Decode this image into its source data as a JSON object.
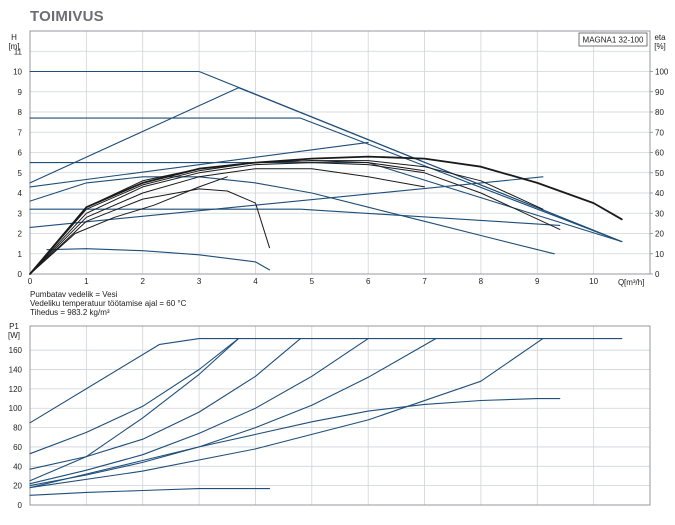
{
  "header": {
    "title": "TOIMIVUS"
  },
  "chart_data": [
    {
      "type": "line",
      "title": "",
      "legend_box": "MAGNA1 32-100",
      "ylabel": "H",
      "ylabel_unit": "[m]",
      "y2label": "eta",
      "y2label_unit": "[%]",
      "xlabel": "Q",
      "xlabel_unit": "[m³/h]",
      "xlim": [
        0,
        11
      ],
      "ylim": [
        0,
        12
      ],
      "y2lim": [
        0,
        120
      ],
      "grid": true,
      "x_ticks": [
        "0",
        "1",
        "2",
        "3",
        "4",
        "5",
        "6",
        "7",
        "8",
        "9",
        "10"
      ],
      "y_ticks": [
        "0",
        "1",
        "2",
        "3",
        "4",
        "5",
        "6",
        "7",
        "8",
        "9",
        "10",
        "11"
      ],
      "y2_ticks": [
        "0",
        "10",
        "20",
        "30",
        "40",
        "50",
        "60",
        "70",
        "80",
        "90",
        "100"
      ],
      "notes": [
        "Pumbatav vedelik = Vesi",
        "Vedeliku temperatuur töötamise ajal = 60 °C",
        "Tihedus = 983.2 kg/m³"
      ],
      "series": [
        {
          "role": "head",
          "color": "#1f4e79",
          "points": [
            [
              0,
              10
            ],
            [
              3,
              10
            ],
            [
              10.5,
              1.6
            ]
          ]
        },
        {
          "role": "head",
          "color": "#1f4e79",
          "points": [
            [
              0,
              7.7
            ],
            [
              4.8,
              7.7
            ],
            [
              10.5,
              1.6
            ]
          ]
        },
        {
          "role": "head",
          "color": "#1f4e79",
          "points": [
            [
              0,
              4.5
            ],
            [
              3.7,
              9.2
            ],
            [
              10.5,
              1.6
            ]
          ]
        },
        {
          "role": "head",
          "color": "#1f4e79",
          "points": [
            [
              0,
              5.5
            ],
            [
              6.0,
              5.5
            ],
            [
              10.5,
              1.6
            ]
          ]
        },
        {
          "role": "head",
          "color": "#1f4e79",
          "points": [
            [
              0,
              3.2
            ],
            [
              4.8,
              3.2
            ],
            [
              9.4,
              2.4
            ]
          ]
        },
        {
          "role": "head",
          "color": "#1f4e79",
          "points": [
            [
              0,
              2.3
            ],
            [
              9.1,
              4.8
            ]
          ]
        },
        {
          "role": "head",
          "color": "#1f4e79",
          "points": [
            [
              0,
              4.3
            ],
            [
              6.0,
              6.5
            ]
          ]
        },
        {
          "role": "head",
          "color": "#1f4e79",
          "points": [
            [
              0,
              3.6
            ],
            [
              1,
              4.5
            ],
            [
              2,
              4.8
            ],
            [
              3,
              4.8
            ],
            [
              4,
              4.5
            ],
            [
              5,
              4.0
            ],
            [
              6,
              3.3
            ],
            [
              7,
              2.6
            ],
            [
              8,
              1.9
            ],
            [
              9.3,
              1.0
            ]
          ]
        },
        {
          "role": "head",
          "color": "#1f4e79",
          "points": [
            [
              0.3,
              1.2
            ],
            [
              1,
              1.25
            ],
            [
              2,
              1.15
            ],
            [
              3,
              0.95
            ],
            [
              4,
              0.6
            ],
            [
              4.25,
              0.2
            ]
          ]
        },
        {
          "role": "eta",
          "color": "#1a1a1a",
          "points": [
            [
              0,
              0
            ],
            [
              1,
              33
            ],
            [
              2,
              45
            ],
            [
              3,
              52
            ],
            [
              4,
              55
            ],
            [
              5,
              57
            ],
            [
              6,
              58
            ],
            [
              7,
              57
            ],
            [
              8,
              53
            ],
            [
              9,
              45
            ],
            [
              10,
              35
            ],
            [
              10.5,
              27
            ]
          ]
        },
        {
          "role": "eta",
          "color": "#1a1a1a",
          "points": [
            [
              0,
              0
            ],
            [
              1,
              32
            ],
            [
              2,
              44
            ],
            [
              3,
              51
            ],
            [
              4,
              55
            ],
            [
              5,
              56
            ],
            [
              6,
              56
            ],
            [
              7,
              53
            ],
            [
              8,
              46
            ],
            [
              9.1,
              32
            ]
          ]
        },
        {
          "role": "eta",
          "color": "#1a1a1a",
          "points": [
            [
              0,
              0
            ],
            [
              1,
              30
            ],
            [
              2,
              43
            ],
            [
              3,
              50
            ],
            [
              4,
              54
            ],
            [
              5,
              55
            ],
            [
              6,
              54
            ],
            [
              7,
              50
            ],
            [
              8,
              40
            ],
            [
              9.4,
              22
            ]
          ]
        },
        {
          "role": "eta",
          "color": "#1a1a1a",
          "points": [
            [
              0,
              0
            ],
            [
              1,
              33
            ],
            [
              2,
              46
            ],
            [
              3,
              52
            ],
            [
              4,
              55
            ],
            [
              5,
              56
            ],
            [
              6,
              55
            ],
            [
              7,
              51
            ]
          ]
        },
        {
          "role": "eta",
          "color": "#1a1a1a",
          "points": [
            [
              0,
              0
            ],
            [
              1,
              28
            ],
            [
              2,
              40
            ],
            [
              3,
              48
            ],
            [
              4,
              52
            ],
            [
              5,
              52
            ],
            [
              6,
              48
            ],
            [
              7,
              43
            ]
          ]
        },
        {
          "role": "eta",
          "color": "#1a1a1a",
          "points": [
            [
              0,
              0
            ],
            [
              1,
              26
            ],
            [
              2,
              37
            ],
            [
              3,
              42
            ],
            [
              3.5,
              41
            ],
            [
              4,
              35
            ],
            [
              4.25,
              13
            ]
          ]
        },
        {
          "role": "eta",
          "color": "#1a1a1a",
          "points": [
            [
              0,
              0
            ],
            [
              0.8,
              20
            ],
            [
              1.5,
              28
            ],
            [
              2.2,
              34
            ],
            [
              3,
              43
            ],
            [
              3.5,
              48
            ]
          ]
        }
      ]
    },
    {
      "type": "line",
      "title": "",
      "ylabel": "P1",
      "ylabel_unit": "[W]",
      "xlim": [
        0,
        11
      ],
      "ylim": [
        0,
        185
      ],
      "grid": true,
      "y_ticks": [
        "0",
        "20",
        "40",
        "60",
        "80",
        "100",
        "120",
        "140",
        "160"
      ],
      "series": [
        {
          "color": "#1f4e79",
          "points": [
            [
              0,
              85
            ],
            [
              2.3,
              166
            ],
            [
              3,
              172
            ],
            [
              10.5,
              172
            ]
          ]
        },
        {
          "color": "#1f4e79",
          "points": [
            [
              0,
              53
            ],
            [
              1,
              75
            ],
            [
              2,
              102
            ],
            [
              3,
              140
            ],
            [
              3.7,
              172
            ]
          ]
        },
        {
          "color": "#1f4e79",
          "points": [
            [
              0,
              25
            ],
            [
              1,
              50
            ],
            [
              2,
              90
            ],
            [
              3,
              135
            ],
            [
              3.7,
              172
            ]
          ]
        },
        {
          "color": "#1f4e79",
          "points": [
            [
              0,
              37
            ],
            [
              1,
              50
            ],
            [
              2,
              68
            ],
            [
              3,
              96
            ],
            [
              4,
              133
            ],
            [
              4.8,
              172
            ]
          ]
        },
        {
          "color": "#1f4e79",
          "points": [
            [
              0,
              22
            ],
            [
              1,
              36
            ],
            [
              2,
              52
            ],
            [
              3,
              74
            ],
            [
              4,
              100
            ],
            [
              5,
              133
            ],
            [
              6.0,
              172
            ]
          ]
        },
        {
          "color": "#1f4e79",
          "points": [
            [
              0,
              20
            ],
            [
              1,
              31
            ],
            [
              2,
              44
            ],
            [
              3,
              60
            ],
            [
              4,
              80
            ],
            [
              5,
              103
            ],
            [
              6,
              132
            ],
            [
              7.2,
              172
            ]
          ]
        },
        {
          "color": "#1f4e79",
          "points": [
            [
              0,
              18
            ],
            [
              2,
              35
            ],
            [
              4,
              58
            ],
            [
              6,
              88
            ],
            [
              8,
              128
            ],
            [
              9.1,
              172
            ]
          ]
        },
        {
          "color": "#1f4e79",
          "points": [
            [
              0,
              18
            ],
            [
              1,
              32
            ],
            [
              2,
              46
            ],
            [
              3,
              60
            ],
            [
              4,
              73
            ],
            [
              5,
              86
            ],
            [
              6,
              97
            ],
            [
              7,
              104
            ],
            [
              8,
              108
            ],
            [
              9,
              110
            ],
            [
              9.4,
              110
            ]
          ]
        },
        {
          "color": "#1f4e79",
          "points": [
            [
              0,
              10
            ],
            [
              1,
              13
            ],
            [
              2,
              15
            ],
            [
              3,
              17
            ],
            [
              4,
              17
            ],
            [
              4.25,
              17
            ]
          ]
        }
      ]
    }
  ]
}
